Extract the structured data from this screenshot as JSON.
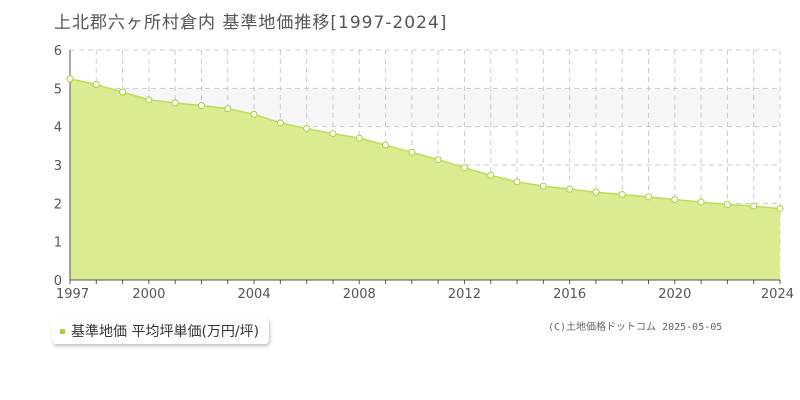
{
  "title": "上北郡六ヶ所村倉内 基準地価推移[1997-2024]",
  "legend": {
    "label": "基準地価 平均坪単価(万円/坪)",
    "color": "#a8d137"
  },
  "copyright": "(C)土地価格ドットコム 2025-05-05",
  "colors": {
    "area": "#d9ec91",
    "line": "#bcdc5a",
    "marker_stroke": "#a8d137",
    "shaded_band": "#f6f6f8",
    "grid": "#cccccc"
  },
  "chart_data": {
    "type": "area",
    "title": "上北郡六ヶ所村倉内 基準地価推移[1997-2024]",
    "xlabel": "",
    "ylabel": "",
    "xlim": [
      1997,
      2024
    ],
    "ylim": [
      0,
      6
    ],
    "x_ticks": [
      "1997",
      "2000",
      "2004",
      "2008",
      "2012",
      "2016",
      "2020",
      "2024"
    ],
    "y_ticks": [
      "0",
      "1",
      "2",
      "3",
      "4",
      "5",
      "6"
    ],
    "grid": true,
    "legend_position": "bottom-left",
    "series": [
      {
        "name": "基準地価 平均坪単価(万円/坪)",
        "x": [
          1997,
          1998,
          1999,
          2000,
          2001,
          2002,
          2003,
          2004,
          2005,
          2006,
          2007,
          2008,
          2009,
          2010,
          2011,
          2012,
          2013,
          2014,
          2015,
          2016,
          2017,
          2018,
          2019,
          2020,
          2021,
          2022,
          2023,
          2024
        ],
        "values": [
          5.25,
          5.1,
          4.9,
          4.7,
          4.62,
          4.55,
          4.47,
          4.32,
          4.1,
          3.95,
          3.82,
          3.7,
          3.52,
          3.33,
          3.14,
          2.93,
          2.73,
          2.56,
          2.45,
          2.37,
          2.29,
          2.23,
          2.17,
          2.1,
          2.03,
          1.97,
          1.93,
          1.86
        ]
      }
    ]
  }
}
